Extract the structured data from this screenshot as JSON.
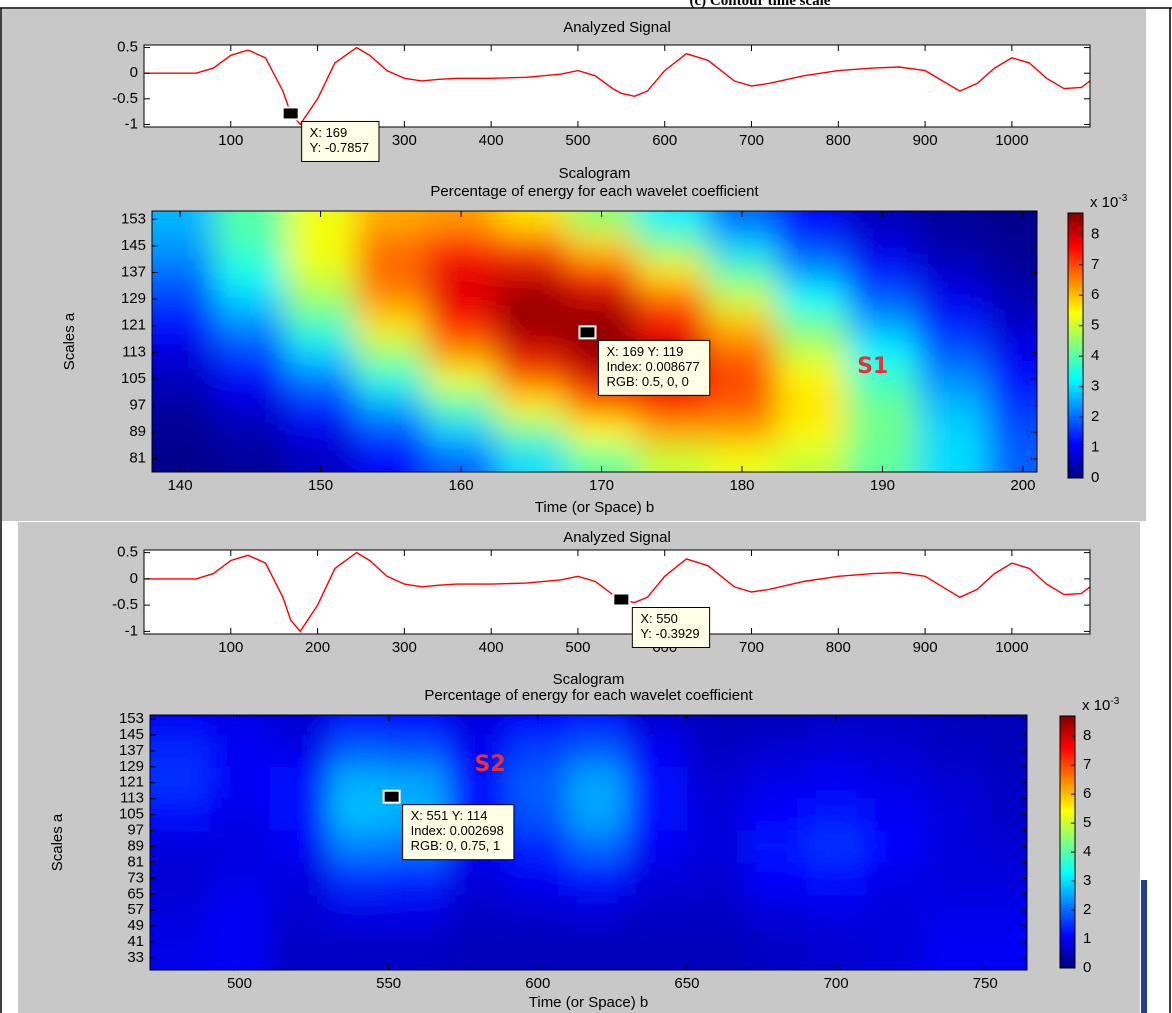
{
  "caption": "(c) Contour time scale",
  "chart_data": [
    {
      "type": "line",
      "title": "Analyzed Signal",
      "color": "#ff0000",
      "x": [
        1,
        20,
        40,
        60,
        80,
        100,
        120,
        140,
        160,
        169,
        180,
        200,
        220,
        245,
        260,
        280,
        300,
        320,
        340,
        360,
        400,
        440,
        480,
        500,
        520,
        540,
        550,
        565,
        580,
        600,
        625,
        650,
        680,
        700,
        720,
        760,
        800,
        840,
        870,
        900,
        920,
        940,
        960,
        980,
        1000,
        1020,
        1040,
        1060,
        1080,
        1090
      ],
      "values": [
        0,
        0,
        0,
        0,
        0.1,
        0.35,
        0.45,
        0.3,
        -0.35,
        -0.7857,
        -1,
        -0.5,
        0.2,
        0.5,
        0.35,
        0.05,
        -0.1,
        -0.15,
        -0.12,
        -0.1,
        -0.1,
        -0.08,
        -0.02,
        0.05,
        -0.05,
        -0.3,
        -0.3929,
        -0.45,
        -0.35,
        0.05,
        0.38,
        0.25,
        -0.15,
        -0.25,
        -0.2,
        -0.05,
        0.05,
        0.1,
        0.12,
        0.05,
        -0.15,
        -0.35,
        -0.2,
        0.1,
        0.3,
        0.2,
        -0.1,
        -0.3,
        -0.28,
        -0.15
      ],
      "xlim": [
        0,
        1090
      ],
      "ylim": [
        -1.05,
        0.55
      ],
      "xticks": [
        100,
        200,
        300,
        400,
        500,
        600,
        700,
        800,
        900,
        1000
      ],
      "yticks": [
        -1,
        -0.5,
        0,
        0.5
      ],
      "datatip": {
        "x": 169,
        "y": -0.7857,
        "lines": [
          "X: 169",
          "Y: -0.7857"
        ]
      }
    },
    {
      "type": "heatmap",
      "title": "Scalogram",
      "subtitle": "Percentage of energy for each wavelet coefficient",
      "x_label": "Time (or Space) b",
      "y_label": "Scales a",
      "x": [
        140,
        145,
        150,
        155,
        160,
        165,
        170,
        175,
        180,
        185,
        190,
        195,
        200
      ],
      "y": [
        153,
        145,
        137,
        129,
        121,
        113,
        105,
        97,
        89,
        81
      ],
      "values": [
        [
          2.65,
          4.0,
          5.28,
          6.14,
          6.28,
          5.66,
          4.48,
          3.13,
          1.93,
          1.04,
          0.49,
          0.21,
          0.08
        ],
        [
          2.4,
          3.84,
          5.39,
          6.66,
          7.25,
          6.94,
          5.85,
          4.34,
          2.83,
          1.63,
          0.83,
          0.36,
          0.15
        ],
        [
          2.03,
          3.44,
          5.15,
          6.76,
          7.82,
          7.97,
          7.14,
          5.63,
          3.91,
          2.39,
          1.28,
          0.61,
          0.26
        ],
        [
          1.6,
          2.89,
          4.59,
          6.41,
          7.87,
          8.52,
          8.12,
          6.81,
          5.02,
          3.27,
          1.87,
          0.94,
          0.42
        ],
        [
          1.17,
          2.26,
          3.81,
          5.66,
          7.39,
          8.5,
          8.61,
          7.67,
          6.02,
          4.16,
          2.53,
          1.36,
          0.64
        ],
        [
          0.81,
          1.65,
          2.95,
          4.66,
          6.47,
          7.92,
          8.53,
          8.08,
          6.74,
          4.95,
          3.2,
          1.82,
          0.91
        ],
        [
          0.51,
          1.12,
          2.13,
          3.58,
          5.28,
          6.87,
          7.87,
          7.93,
          7.03,
          5.49,
          3.77,
          2.28,
          1.21
        ],
        [
          0.31,
          0.71,
          1.43,
          2.56,
          4.02,
          5.57,
          6.77,
          7.26,
          6.85,
          5.68,
          4.15,
          2.67,
          1.51
        ],
        [
          0.17,
          0.42,
          0.9,
          1.71,
          2.87,
          4.22,
          5.45,
          6.21,
          6.23,
          5.5,
          4.27,
          2.92,
          1.76
        ],
        [
          0.09,
          0.23,
          0.53,
          1.07,
          1.9,
          2.97,
          4.09,
          4.95,
          5.28,
          4.95,
          4.09,
          2.97,
          1.9
        ]
      ],
      "xlim": [
        138,
        201
      ],
      "ylim": [
        77,
        155.5
      ],
      "xticks": [
        140,
        150,
        160,
        170,
        180,
        190,
        200
      ],
      "yticks": [
        81,
        89,
        97,
        105,
        113,
        121,
        129,
        137,
        145,
        153
      ],
      "colorbar": {
        "lim": [
          0,
          8.7
        ],
        "ticks": [
          0,
          1,
          2,
          3,
          4,
          5,
          6,
          7,
          8
        ],
        "label": "x 10",
        "exponent": "-3"
      },
      "annotations": [
        {
          "text": "S1",
          "x": 189.3,
          "y": 108.6,
          "color": "#e8303a"
        }
      ],
      "datatip": {
        "x": 169,
        "y": 119,
        "lines": [
          "X: 169 Y: 119",
          "Index: 0.008677",
          "RGB: 0.5, 0, 0"
        ]
      }
    },
    {
      "type": "line",
      "title": "Analyzed Signal",
      "color": "#ff0000",
      "x": [
        1,
        20,
        40,
        60,
        80,
        100,
        120,
        140,
        160,
        169,
        180,
        200,
        220,
        245,
        260,
        280,
        300,
        320,
        340,
        360,
        400,
        440,
        480,
        500,
        520,
        540,
        550,
        565,
        580,
        600,
        625,
        650,
        680,
        700,
        720,
        760,
        800,
        840,
        870,
        900,
        920,
        940,
        960,
        980,
        1000,
        1020,
        1040,
        1060,
        1080,
        1090
      ],
      "values": [
        0,
        0,
        0,
        0,
        0.1,
        0.35,
        0.45,
        0.3,
        -0.35,
        -0.7857,
        -1,
        -0.5,
        0.2,
        0.5,
        0.35,
        0.05,
        -0.1,
        -0.15,
        -0.12,
        -0.1,
        -0.1,
        -0.08,
        -0.02,
        0.05,
        -0.05,
        -0.3,
        -0.3929,
        -0.45,
        -0.35,
        0.05,
        0.38,
        0.25,
        -0.15,
        -0.25,
        -0.2,
        -0.05,
        0.05,
        0.1,
        0.12,
        0.05,
        -0.15,
        -0.35,
        -0.2,
        0.1,
        0.3,
        0.2,
        -0.1,
        -0.3,
        -0.28,
        -0.15
      ],
      "xlim": [
        0,
        1090
      ],
      "ylim": [
        -1.05,
        0.55
      ],
      "xticks": [
        100,
        200,
        300,
        400,
        500,
        600,
        700,
        800,
        900,
        1000
      ],
      "yticks": [
        -1,
        -0.5,
        0,
        0.5
      ],
      "datatip": {
        "x": 550,
        "y": -0.3929,
        "lines": [
          "X: 550",
          "Y: -0.3929"
        ]
      }
    },
    {
      "type": "heatmap",
      "title": "Scalogram",
      "subtitle": "Percentage of energy for each wavelet coefficient",
      "x_label": "Time (or Space) b",
      "y_label": "Scales a",
      "x": [
        480,
        500,
        520,
        540,
        560,
        580,
        600,
        620,
        640,
        660,
        680,
        700,
        720,
        740,
        760
      ],
      "y": [
        153,
        137,
        121,
        105,
        89,
        73,
        57,
        41
      ],
      "values": [
        [
          1.0,
          0.9,
          0.7,
          1.2,
          1.1,
          0.8,
          1.1,
          1.2,
          0.7,
          0.5,
          0.5,
          0.6,
          0.6,
          0.5,
          0.5
        ],
        [
          1.4,
          1.0,
          0.9,
          1.9,
          1.8,
          1.0,
          1.6,
          1.9,
          1.0,
          0.6,
          0.7,
          0.8,
          0.7,
          0.6,
          0.5
        ],
        [
          1.5,
          1.0,
          1.2,
          2.6,
          2.5,
          1.2,
          1.9,
          2.5,
          1.2,
          0.7,
          0.9,
          1.0,
          0.9,
          0.7,
          0.6
        ],
        [
          1.2,
          0.9,
          1.2,
          2.7,
          2.6,
          1.2,
          1.8,
          2.5,
          1.2,
          0.8,
          1.1,
          1.3,
          1.0,
          0.8,
          0.6
        ],
        [
          0.8,
          0.8,
          1.0,
          2.2,
          2.1,
          1.0,
          1.4,
          2.0,
          1.0,
          0.8,
          1.3,
          1.5,
          1.1,
          0.8,
          0.7
        ],
        [
          0.7,
          0.9,
          0.8,
          1.5,
          1.4,
          0.8,
          1.0,
          1.3,
          0.8,
          0.7,
          1.1,
          1.2,
          0.9,
          0.8,
          0.8
        ],
        [
          0.8,
          1.0,
          0.7,
          0.9,
          0.9,
          0.6,
          0.7,
          0.8,
          0.6,
          0.6,
          0.8,
          0.9,
          0.8,
          0.9,
          0.9
        ],
        [
          0.9,
          1.0,
          0.6,
          0.6,
          0.6,
          0.5,
          0.5,
          0.5,
          0.5,
          0.5,
          0.6,
          0.7,
          0.8,
          1.0,
          1.0
        ]
      ],
      "xlim": [
        470,
        764
      ],
      "ylim": [
        27,
        155
      ],
      "xticks": [
        500,
        550,
        600,
        650,
        700,
        750
      ],
      "yticks": [
        33,
        41,
        49,
        57,
        65,
        73,
        81,
        89,
        97,
        105,
        113,
        121,
        129,
        137,
        145,
        153
      ],
      "colorbar": {
        "lim": [
          0,
          8.7
        ],
        "ticks": [
          0,
          1,
          2,
          3,
          4,
          5,
          6,
          7,
          8
        ],
        "label": "x 10",
        "exponent": "-3"
      },
      "annotations": [
        {
          "text": "S2",
          "x": 584,
          "y": 130,
          "color": "#e8303a"
        }
      ],
      "datatip": {
        "x": 551,
        "y": 114,
        "lines": [
          "X: 551 Y: 114",
          "Index: 0.002698",
          "RGB: 0, 0.75, 1"
        ]
      }
    }
  ]
}
